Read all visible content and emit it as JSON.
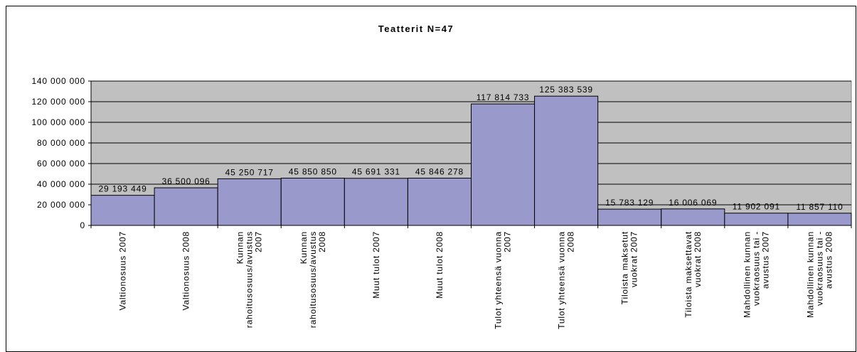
{
  "chart_data": {
    "type": "bar",
    "title": "Teatterit N=47",
    "categories": [
      "Valtionosuus 2007",
      "Valtionosuus 2008",
      "Kunnan rahoitusosuus/avustus 2007",
      "Kunnan rahoitusosuus/avustus 2008",
      "Muut tulot 2007",
      "Muut tulot 2008",
      "Tulot yhteensä vuonna 2007",
      "Tulot yhteensä vuonna 2008",
      "Tiloista maksetut vuokrat 2007",
      "Tiloista maksettavat vuokrat 2008",
      "Mahdollinen kunnan vuokraosuus tai - avustus 2007",
      "Mahdollinen kunnan vuokraosuus tai - avustus 2008"
    ],
    "values": [
      29193449,
      36500096,
      45250717,
      45850850,
      45691331,
      45846278,
      117814733,
      125383539,
      15783129,
      16006069,
      11902091,
      11857110
    ],
    "value_labels": [
      "29 193 449",
      "36 500 096",
      "45 250 717",
      "45 850 850",
      "45 691 331",
      "45 846 278",
      "117 814 733",
      "125 383 539",
      "15 783 129",
      "16 006 069",
      "11 902 091",
      "11 857 110"
    ],
    "color": "#9999cc",
    "plot_background": "#c0c0c0",
    "ylim": [
      0,
      140000000
    ],
    "yticks": [
      0,
      {
        "value": 20000000,
        "label": "20 000 000"
      },
      {
        "value": 40000000,
        "label": "40 000 000"
      },
      {
        "value": 60000000,
        "label": "60 000 000"
      },
      {
        "value": 80000000,
        "label": "80 000 000"
      },
      {
        "value": 100000000,
        "label": "100 000 000"
      },
      {
        "value": 120000000,
        "label": "120 000 000"
      },
      {
        "value": 140000000,
        "label": "140 000 000"
      }
    ],
    "grid": true
  }
}
